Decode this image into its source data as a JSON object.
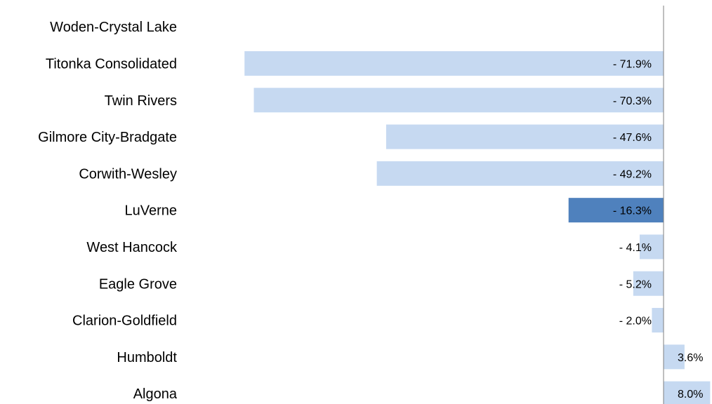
{
  "chart_data": {
    "type": "bar",
    "orientation": "horizontal",
    "title": "",
    "xlabel": "",
    "ylabel": "",
    "legend": "none",
    "grid": false,
    "categories": [
      "Woden-Crystal Lake",
      "Titonka Consolidated",
      "Twin Rivers",
      "Gilmore City-Bradgate",
      "Corwith-Wesley",
      "LuVerne",
      "West Hancock",
      "Eagle Grove",
      "Clarion-Goldfield",
      "Humboldt",
      "Algona"
    ],
    "values": [
      null,
      -71.9,
      -70.3,
      -47.6,
      -49.2,
      -16.3,
      -4.1,
      -5.2,
      -2.0,
      3.6,
      8.0
    ],
    "labels": [
      "",
      "- 71.9%",
      "- 70.3%",
      "- 47.6%",
      "- 49.2%",
      "- 16.3%",
      "- 4.1%",
      "- 5.2%",
      "- 2.0%",
      "3.6%",
      "8.0%"
    ],
    "highlighted": "LuVerne",
    "xlim": [
      -75,
      10
    ],
    "colors": {
      "bar": "#c6d9f1",
      "highlight": "#4f81bd",
      "axis": "#7f7f7f"
    }
  }
}
